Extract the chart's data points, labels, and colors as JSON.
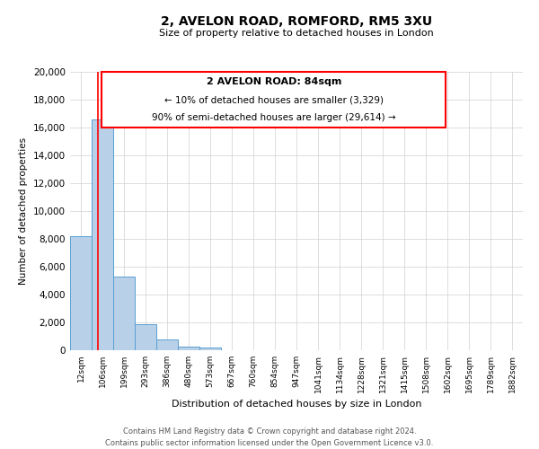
{
  "title": "2, AVELON ROAD, ROMFORD, RM5 3XU",
  "subtitle": "Size of property relative to detached houses in London",
  "xlabel": "Distribution of detached houses by size in London",
  "ylabel": "Number of detached properties",
  "bar_labels": [
    "12sqm",
    "106sqm",
    "199sqm",
    "293sqm",
    "386sqm",
    "480sqm",
    "573sqm",
    "667sqm",
    "760sqm",
    "854sqm",
    "947sqm",
    "1041sqm",
    "1134sqm",
    "1228sqm",
    "1321sqm",
    "1415sqm",
    "1508sqm",
    "1602sqm",
    "1695sqm",
    "1789sqm",
    "1882sqm"
  ],
  "bar_values": [
    8200,
    16600,
    5300,
    1850,
    800,
    280,
    220,
    0,
    0,
    0,
    0,
    0,
    0,
    0,
    0,
    0,
    0,
    0,
    0,
    0,
    0
  ],
  "bar_color": "#b8d0e8",
  "bar_edge_color": "#5a9fd4",
  "ylim": [
    0,
    20000
  ],
  "yticks": [
    0,
    2000,
    4000,
    6000,
    8000,
    10000,
    12000,
    14000,
    16000,
    18000,
    20000
  ],
  "property_size": "84sqm",
  "property_label": "2 AVELON ROAD",
  "pct_smaller": "10%",
  "n_smaller": "3,329",
  "pct_larger": "90%",
  "n_larger": "29,614",
  "red_line_x": 0.78,
  "footer_line1": "Contains HM Land Registry data © Crown copyright and database right 2024.",
  "footer_line2": "Contains public sector information licensed under the Open Government Licence v3.0.",
  "grid_color": "#d0d0d0",
  "background_color": "#ffffff"
}
